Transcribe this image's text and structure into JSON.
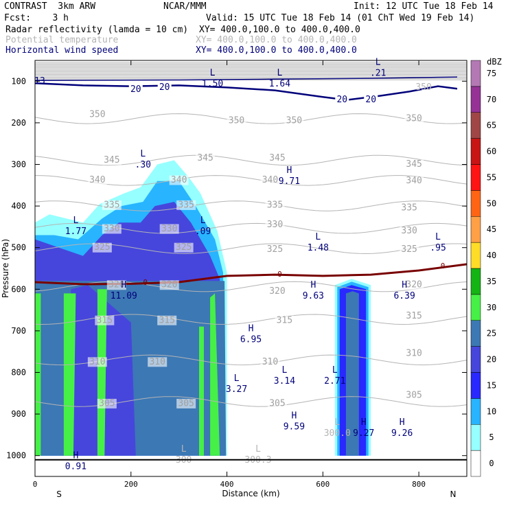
{
  "header": {
    "title_left": "CONTRAST  3km ARW",
    "center": "NCAR/MMM",
    "init": "Init: 12 UTC Tue 18 Feb 14",
    "fcst": "Fcst:    3 h",
    "valid": "Valid: 15 UTC Tue 18 Feb 14 (01 ChT Wed 19 Feb 14)",
    "fields": [
      {
        "name": "Radar reflectivity (lamda = 10 cm)",
        "xy": "XY= 400.0,100.0 to 400.0,400.0",
        "color": "#000000"
      },
      {
        "name": "Potential temperature",
        "xy": "XY= 400.0,100.0 to 400.0,400.0",
        "color": "#b4b4b4"
      },
      {
        "name": "Horizontal wind speed",
        "xy": "XY= 400.0,100.0 to 400.0,400.0",
        "color": "#00007a"
      }
    ]
  },
  "chart_data": {
    "type": "cross-section",
    "xlabel": "Distance (km)",
    "ylabel": "Pressure (hPa)",
    "xlim": [
      0,
      900
    ],
    "ylim": [
      1050,
      50
    ],
    "x_ticks": [
      0,
      200,
      400,
      600,
      800
    ],
    "y_ticks": [
      100,
      200,
      300,
      400,
      500,
      600,
      700,
      800,
      900,
      1000
    ],
    "x_end_labels": {
      "left": "S",
      "right": "N"
    },
    "colorbar": {
      "unit": "dBZ",
      "levels": [
        0,
        5,
        10,
        15,
        20,
        25,
        30,
        35,
        40,
        45,
        50,
        55,
        60,
        65,
        70,
        75
      ],
      "colors": [
        "#ffffff",
        "#96ffff",
        "#28b4ff",
        "#2828ff",
        "#4646dc",
        "#3c78b4",
        "#46f046",
        "#14b414",
        "#ffdc28",
        "#ffa046",
        "#ff6414",
        "#ff1414",
        "#c81414",
        "#a04646",
        "#963296",
        "#b478b4"
      ]
    },
    "theta_contours": [
      {
        "value": 305,
        "labels": [
          [
            150,
            875
          ],
          [
            315,
            875
          ],
          [
            505,
            875
          ],
          [
            790,
            855
          ]
        ]
      },
      {
        "value": 310,
        "labels": [
          [
            130,
            775
          ],
          [
            255,
            775
          ],
          [
            490,
            775
          ],
          [
            790,
            755
          ]
        ]
      },
      {
        "value": 315,
        "labels": [
          [
            145,
            675
          ],
          [
            275,
            675
          ],
          [
            520,
            675
          ],
          [
            790,
            665
          ]
        ]
      },
      {
        "value": 320,
        "labels": [
          [
            170,
            590
          ],
          [
            280,
            590
          ],
          [
            505,
            605
          ],
          [
            790,
            590
          ]
        ]
      },
      {
        "value": 325,
        "labels": [
          [
            140,
            500
          ],
          [
            310,
            500
          ],
          [
            500,
            505
          ],
          [
            780,
            505
          ]
        ]
      },
      {
        "value": 330,
        "labels": [
          [
            160,
            455
          ],
          [
            280,
            455
          ],
          [
            500,
            445
          ],
          [
            780,
            460
          ]
        ]
      },
      {
        "value": 335,
        "labels": [
          [
            160,
            398
          ],
          [
            315,
            398
          ],
          [
            500,
            398
          ],
          [
            780,
            405
          ]
        ]
      },
      {
        "value": 340,
        "labels": [
          [
            130,
            338
          ],
          [
            300,
            338
          ],
          [
            490,
            338
          ],
          [
            790,
            340
          ]
        ]
      },
      {
        "value": 345,
        "labels": [
          [
            160,
            290
          ],
          [
            355,
            285
          ],
          [
            505,
            285
          ],
          [
            790,
            300
          ]
        ]
      },
      {
        "value": 350,
        "labels": [
          [
            130,
            180
          ],
          [
            420,
            195
          ],
          [
            540,
            195
          ],
          [
            790,
            190
          ]
        ]
      }
    ],
    "wind_contours": [
      {
        "value": 20,
        "labels": [
          [
            210,
            120
          ],
          [
            270,
            115
          ],
          [
            640,
            145
          ],
          [
            700,
            145
          ]
        ]
      }
    ],
    "wind_label_13": {
      "text": "13",
      "x": 10,
      "p": 100
    },
    "theta_top_label": {
      "text": "350",
      "x": 810,
      "p": 115
    },
    "zero_contour_labels": [
      [
        230,
        585
      ],
      [
        510,
        565
      ],
      [
        850,
        545
      ]
    ],
    "extrema": [
      {
        "type": "L",
        "value": "1.50",
        "x": 370,
        "p": 95,
        "color": "#00007a"
      },
      {
        "type": "L",
        "value": "1.64",
        "x": 510,
        "p": 95,
        "color": "#00007a"
      },
      {
        "type": "L",
        "value": ".21",
        "x": 715,
        "p": 70,
        "color": "#00007a"
      },
      {
        "type": "L",
        "value": ".30",
        "x": 225,
        "p": 290,
        "color": "#00007a"
      },
      {
        "type": "H",
        "value": "9.71",
        "x": 530,
        "p": 330,
        "color": "#00007a"
      },
      {
        "type": "L",
        "value": "1.77",
        "x": 85,
        "p": 450,
        "color": "#00007a"
      },
      {
        "type": "L",
        "value": ".09",
        "x": 350,
        "p": 450,
        "color": "#00007a"
      },
      {
        "type": "L",
        "value": "1.48",
        "x": 590,
        "p": 490,
        "color": "#00007a"
      },
      {
        "type": "L",
        "value": ".95",
        "x": 840,
        "p": 490,
        "color": "#00007a"
      },
      {
        "type": "H",
        "value": "11.09",
        "x": 185,
        "p": 605,
        "color": "#00007a"
      },
      {
        "type": "H",
        "value": "9.63",
        "x": 580,
        "p": 605,
        "color": "#00007a"
      },
      {
        "type": "H",
        "value": "6.39",
        "x": 770,
        "p": 605,
        "color": "#00007a"
      },
      {
        "type": "H",
        "value": "6.95",
        "x": 450,
        "p": 710,
        "color": "#00007a"
      },
      {
        "type": "L",
        "value": "3.27",
        "x": 420,
        "p": 830,
        "color": "#00007a"
      },
      {
        "type": "L",
        "value": "3.14",
        "x": 520,
        "p": 810,
        "color": "#00007a"
      },
      {
        "type": "L",
        "value": "2.71",
        "x": 625,
        "p": 810,
        "color": "#00007a"
      },
      {
        "type": "H",
        "value": "9.59",
        "x": 540,
        "p": 920,
        "color": "#00007a"
      },
      {
        "type": "H",
        "value": "9.27",
        "x": 685,
        "p": 935,
        "color": "#00007a"
      },
      {
        "type": "H",
        "value": "9.26",
        "x": 765,
        "p": 935,
        "color": "#00007a"
      },
      {
        "type": "L",
        "value": "300.0",
        "x": 630,
        "p": 935,
        "color": "#b4b4b4"
      },
      {
        "type": "H",
        "value": "0.91",
        "x": 85,
        "p": 1015,
        "color": "#00007a"
      },
      {
        "type": "L",
        "value": "300",
        "x": 310,
        "p": 1000,
        "color": "#b4b4b4"
      },
      {
        "type": "L",
        "value": "300.3",
        "x": 465,
        "p": 1000,
        "color": "#b4b4b4"
      }
    ]
  }
}
